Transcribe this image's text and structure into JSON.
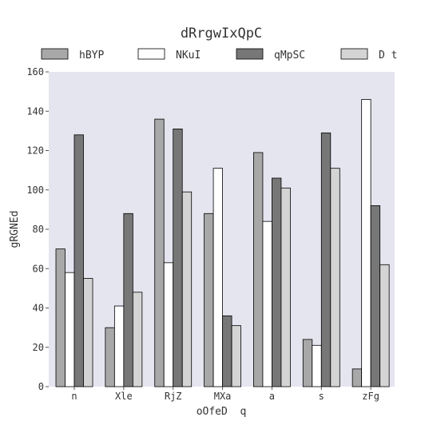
{
  "chart_data": {
    "type": "bar",
    "title": "dRrgwIxQpC",
    "xlabel": "oOfeD  q",
    "ylabel": "gRGNEd",
    "categories": [
      "n",
      "Xle",
      "RjZ",
      "MXa",
      "a",
      "s",
      "zFg"
    ],
    "series": [
      {
        "name": "hBYP",
        "color": "#a8a8a8",
        "values": [
          70,
          30,
          136,
          88,
          119,
          24,
          9
        ]
      },
      {
        "name": "NKuI",
        "color": "#ffffff",
        "values": [
          58,
          41,
          63,
          111,
          84,
          21,
          146
        ]
      },
      {
        "name": "qMpSC",
        "color": "#777777",
        "values": [
          128,
          88,
          131,
          36,
          106,
          129,
          92
        ]
      },
      {
        "name": "D t",
        "color": "#d4d4d4",
        "values": [
          55,
          48,
          99,
          31,
          101,
          111,
          62
        ]
      }
    ],
    "ylim": [
      0,
      160
    ],
    "yticks": [
      0,
      20,
      40,
      60,
      80,
      100,
      120,
      140,
      160
    ],
    "grid": false,
    "legend_position": "top",
    "plot_background": "#e5e5f0"
  }
}
